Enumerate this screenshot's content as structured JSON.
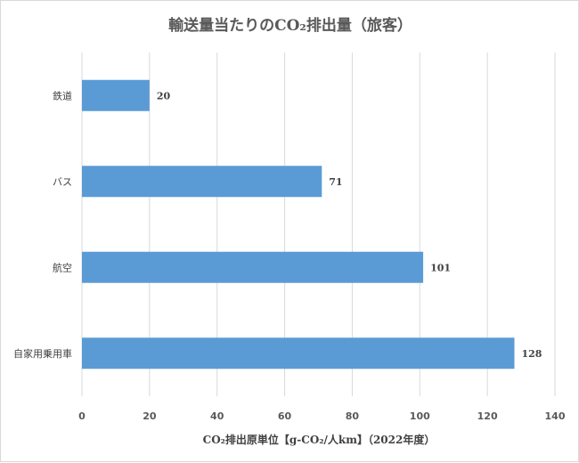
{
  "chart_data": {
    "type": "bar",
    "orientation": "horizontal",
    "title": "輸送量当たりのCO₂排出量（旅客）",
    "xlabel": "CO₂排出原単位【g-CO₂/人km】（2022年度）",
    "ylabel": "",
    "categories": [
      "鉄道",
      "バス",
      "航空",
      "自家用乗用車"
    ],
    "values": [
      20,
      71,
      101,
      128
    ],
    "data_labels": [
      "20",
      "71",
      "101",
      "128"
    ],
    "xlim": [
      0,
      140
    ],
    "ticks": [
      0,
      20,
      40,
      60,
      80,
      100,
      120,
      140
    ],
    "tick_labels": [
      "0",
      "20",
      "40",
      "60",
      "80",
      "100",
      "120",
      "140"
    ],
    "grid": true,
    "legend": "none",
    "colors": {
      "bar": "#5b9bd5",
      "grid": "#d9d9d9",
      "text": "#595959"
    }
  }
}
